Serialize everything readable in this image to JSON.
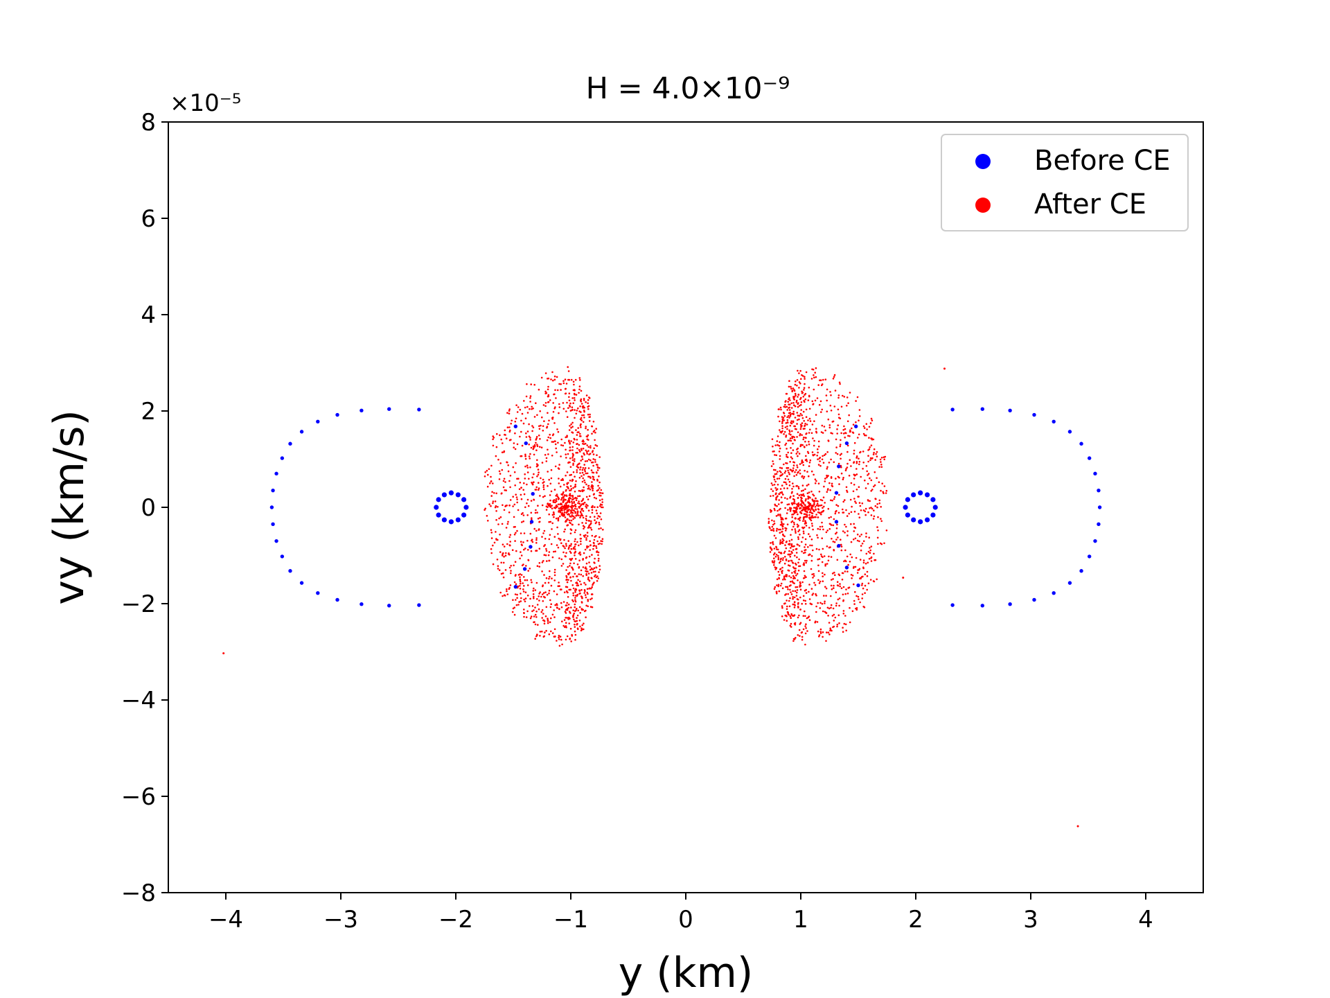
{
  "chart_data": {
    "type": "scatter",
    "title": "H = 4.0×10⁻⁹",
    "xlabel": "y (km)",
    "ylabel": "vy (km/s)",
    "y_scale_label": "×10⁻⁵",
    "xlim": [
      -4.5,
      4.5
    ],
    "ylim": [
      -8,
      8
    ],
    "x_ticks": [
      -4,
      -3,
      -2,
      -1,
      0,
      1,
      2,
      3,
      4
    ],
    "y_ticks": [
      -8,
      -6,
      -4,
      -2,
      0,
      2,
      4,
      6,
      8
    ],
    "x_tick_labels": [
      "−4",
      "−3",
      "−2",
      "−1",
      "0",
      "1",
      "2",
      "3",
      "4"
    ],
    "y_tick_labels": [
      "−8",
      "−6",
      "−4",
      "−2",
      "0",
      "2",
      "4",
      "6",
      "8"
    ],
    "grid": false,
    "legend_position": "top-right",
    "series": [
      {
        "name": "Before CE",
        "color": "#0000ff",
        "groups": [
          {
            "shape": "outer-ellipse",
            "points": [
              [
                -3.6,
                0.0
              ],
              [
                -3.59,
                0.35
              ],
              [
                -3.56,
                0.7
              ],
              [
                -3.51,
                1.02
              ],
              [
                -3.44,
                1.32
              ],
              [
                -3.34,
                1.57
              ],
              [
                -3.2,
                1.78
              ],
              [
                -3.03,
                1.92
              ],
              [
                -2.82,
                2.01
              ],
              [
                -2.58,
                2.04
              ],
              [
                -2.32,
                2.03
              ],
              [
                -3.59,
                -0.35
              ],
              [
                -3.56,
                -0.7
              ],
              [
                -3.51,
                -1.02
              ],
              [
                -3.44,
                -1.32
              ],
              [
                -3.34,
                -1.57
              ],
              [
                -3.2,
                -1.78
              ],
              [
                -3.03,
                -1.92
              ],
              [
                -2.82,
                -2.01
              ],
              [
                -2.58,
                -2.04
              ],
              [
                -2.32,
                -2.03
              ],
              [
                3.6,
                0.0
              ],
              [
                3.59,
                0.35
              ],
              [
                3.56,
                0.7
              ],
              [
                3.51,
                1.02
              ],
              [
                3.44,
                1.32
              ],
              [
                3.34,
                1.57
              ],
              [
                3.2,
                1.78
              ],
              [
                3.03,
                1.92
              ],
              [
                2.82,
                2.01
              ],
              [
                2.58,
                2.04
              ],
              [
                2.32,
                2.03
              ],
              [
                3.59,
                -0.35
              ],
              [
                3.56,
                -0.7
              ],
              [
                3.51,
                -1.02
              ],
              [
                3.44,
                -1.32
              ],
              [
                3.34,
                -1.57
              ],
              [
                3.2,
                -1.78
              ],
              [
                3.03,
                -1.92
              ],
              [
                2.82,
                -2.01
              ],
              [
                2.58,
                -2.04
              ],
              [
                2.32,
                -2.03
              ]
            ]
          },
          {
            "shape": "inner-ring",
            "points": [
              [
                -1.91,
                0.0
              ],
              [
                -1.93,
                0.16
              ],
              [
                -1.98,
                0.26
              ],
              [
                -2.04,
                0.3
              ],
              [
                -2.1,
                0.26
              ],
              [
                -2.15,
                0.16
              ],
              [
                -2.17,
                0.0
              ],
              [
                -2.15,
                -0.16
              ],
              [
                -2.1,
                -0.26
              ],
              [
                -2.04,
                -0.3
              ],
              [
                -1.98,
                -0.26
              ],
              [
                -1.93,
                -0.16
              ],
              [
                1.91,
                0.0
              ],
              [
                1.93,
                0.16
              ],
              [
                1.98,
                0.26
              ],
              [
                2.04,
                0.3
              ],
              [
                2.1,
                0.26
              ],
              [
                2.15,
                0.16
              ],
              [
                2.17,
                0.0
              ],
              [
                2.15,
                -0.16
              ],
              [
                2.1,
                -0.26
              ],
              [
                2.04,
                -0.3
              ],
              [
                1.98,
                -0.26
              ],
              [
                1.93,
                -0.16
              ]
            ]
          },
          {
            "shape": "scattered",
            "points": [
              [
                -1.48,
                1.68
              ],
              [
                -1.39,
                1.33
              ],
              [
                -1.33,
                0.28
              ],
              [
                -1.34,
                -0.3
              ],
              [
                -1.35,
                -0.82
              ],
              [
                -1.4,
                -1.28
              ],
              [
                -1.48,
                -1.65
              ],
              [
                1.48,
                1.68
              ],
              [
                1.4,
                1.33
              ],
              [
                1.33,
                0.85
              ],
              [
                1.31,
                0.3
              ],
              [
                1.31,
                -0.3
              ],
              [
                1.33,
                -0.8
              ],
              [
                1.4,
                -1.25
              ],
              [
                1.5,
                -1.62
              ]
            ]
          }
        ]
      },
      {
        "name": "After CE",
        "color": "#ff0000",
        "clouds": [
          {
            "center": [
              -1.05,
              0.0
            ],
            "x_min": -1.75,
            "x_max": -0.72,
            "y_half": 2.85
          },
          {
            "center": [
              1.05,
              0.0
            ],
            "x_min": 0.72,
            "x_max": 1.75,
            "y_half": 2.85
          }
        ],
        "outliers": [
          [
            -4.02,
            -3.03
          ],
          [
            2.25,
            2.88
          ],
          [
            3.41,
            -6.62
          ],
          [
            1.89,
            -1.46
          ]
        ]
      }
    ]
  }
}
